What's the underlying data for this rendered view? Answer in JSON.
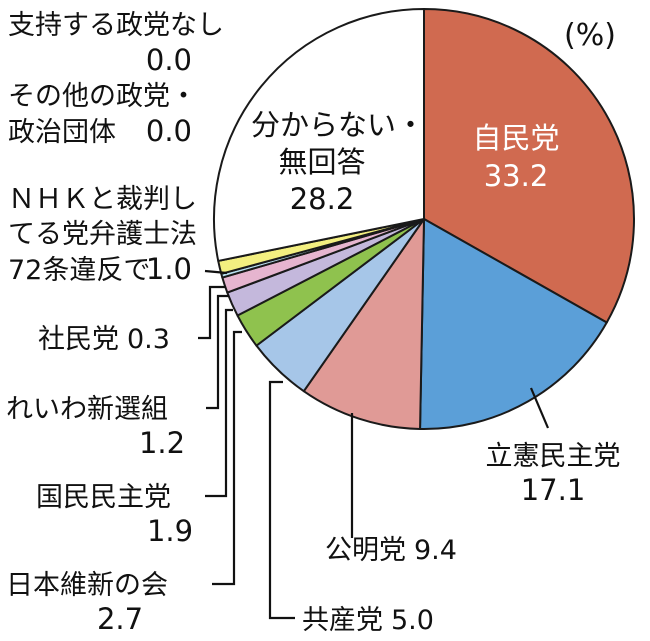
{
  "chart_data": {
    "type": "pie",
    "unit_label": "(%)",
    "slices": [
      {
        "name": "自民党",
        "value": 33.2,
        "value_label": "33.2",
        "color": "#d06a50"
      },
      {
        "name": "立憲民主党",
        "value": 17.1,
        "value_label": "17.1",
        "color": "#5b9fd8"
      },
      {
        "name": "公明党",
        "value": 9.4,
        "value_label": "9.4",
        "color": "#e09a96"
      },
      {
        "name": "共産党",
        "value": 5.0,
        "value_label": "5.0",
        "color": "#a6c6e8"
      },
      {
        "name": "日本維新の会",
        "value": 2.7,
        "value_label": "2.7",
        "color": "#8fc24e"
      },
      {
        "name": "国民民主党",
        "value": 1.9,
        "value_label": "1.9",
        "color": "#c4b8dc"
      },
      {
        "name": "れいわ新選組",
        "value": 1.2,
        "value_label": "1.2",
        "color": "#e6b5cf"
      },
      {
        "name": "社民党",
        "value": 0.3,
        "value_label": "0.3",
        "color": "#b8dff0"
      },
      {
        "name": "ＮＨＫと裁判してる党弁護士法72条違反で",
        "value": 1.0,
        "value_label": "1.0",
        "color": "#f3ef80"
      },
      {
        "name": "その他の政党・政治団体",
        "value": 0.0,
        "value_label": "0.0",
        "color": "#ffffff"
      },
      {
        "name": "支持する政党なし",
        "value": 0.0,
        "value_label": "0.0",
        "color": "#ffffff"
      },
      {
        "name": "分からない・無回答",
        "value": 28.2,
        "value_label": "28.2",
        "color": "#ffffff"
      }
    ]
  }
}
